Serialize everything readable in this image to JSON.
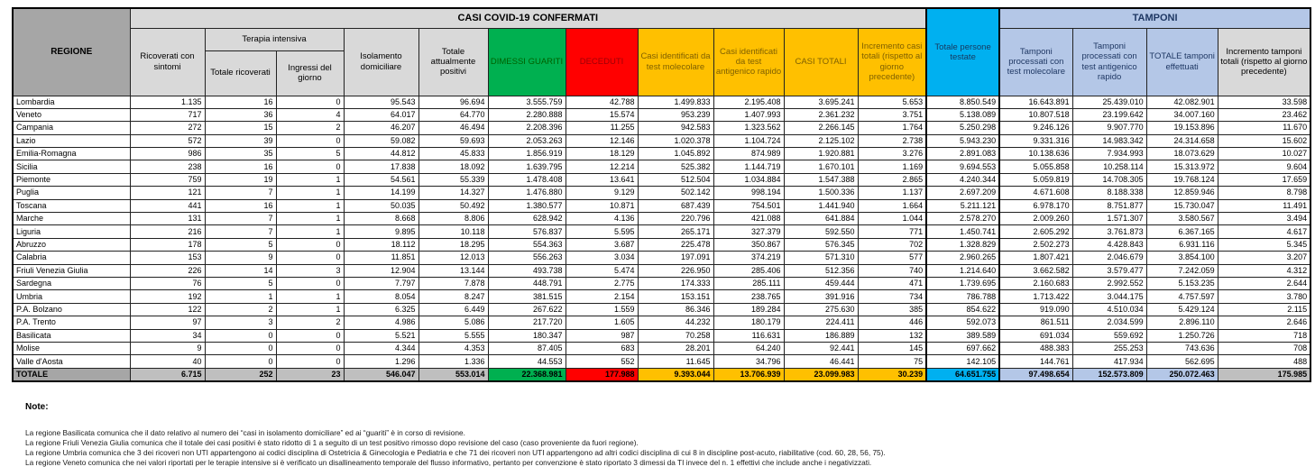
{
  "table": {
    "band_casi": "CASI COVID-19 CONFERMATI",
    "band_tamponi": "TAMPONI",
    "col_regione": "REGIONE",
    "terapia_intensiva": "Terapia intensiva",
    "headers": {
      "ricoverati": "Ricoverati con sintomi",
      "ti_totale": "Totale ricoverati",
      "ti_ingressi": "Ingressi del giorno",
      "isolamento": "Isolamento domiciliare",
      "attualmente_positivi": "Totale attualmente positivi",
      "dimessi": "DIMESSI GUARITI",
      "deceduti": "DECEDUTI",
      "casi_molecolare": "Casi identificati da test molecolare",
      "casi_antigenico": "Casi identificati da test antigenico rapido",
      "casi_totali": "CASI TOTALI",
      "incremento_casi": "Incremento casi totali (rispetto al giorno precedente)",
      "persone_testate": "Totale persone testate",
      "tamponi_molecolare": "Tamponi processati con test molecolare",
      "tamponi_antigenico": "Tamponi processati con test antigenico rapido",
      "tamponi_totale": "TOTALE tamponi effettuati",
      "incremento_tamponi": "Incremento tamponi totali (rispetto al giorno precedente)"
    },
    "rows": [
      [
        "Lombardia",
        "1.135",
        "16",
        "0",
        "95.543",
        "96.694",
        "3.555.759",
        "42.788",
        "1.499.833",
        "2.195.408",
        "3.695.241",
        "5.653",
        "8.850.549",
        "16.643.891",
        "25.439.010",
        "42.082.901",
        "33.598"
      ],
      [
        "Veneto",
        "717",
        "36",
        "4",
        "64.017",
        "64.770",
        "2.280.888",
        "15.574",
        "953.239",
        "1.407.993",
        "2.361.232",
        "3.751",
        "5.138.089",
        "10.807.518",
        "23.199.642",
        "34.007.160",
        "23.462"
      ],
      [
        "Campania",
        "272",
        "15",
        "2",
        "46.207",
        "46.494",
        "2.208.396",
        "11.255",
        "942.583",
        "1.323.562",
        "2.266.145",
        "1.764",
        "5.250.298",
        "9.246.126",
        "9.907.770",
        "19.153.896",
        "11.670"
      ],
      [
        "Lazio",
        "572",
        "39",
        "0",
        "59.082",
        "59.693",
        "2.053.263",
        "12.146",
        "1.020.378",
        "1.104.724",
        "2.125.102",
        "2.738",
        "5.943.230",
        "9.331.316",
        "14.983.342",
        "24.314.658",
        "15.602"
      ],
      [
        "Emilia-Romagna",
        "986",
        "35",
        "5",
        "44.812",
        "45.833",
        "1.856.919",
        "18.129",
        "1.045.892",
        "874.989",
        "1.920.881",
        "3.276",
        "2.891.083",
        "10.138.636",
        "7.934.993",
        "18.073.629",
        "10.027"
      ],
      [
        "Sicilia",
        "238",
        "16",
        "0",
        "17.838",
        "18.092",
        "1.639.795",
        "12.214",
        "525.382",
        "1.144.719",
        "1.670.101",
        "1.169",
        "9.694.553",
        "5.055.858",
        "10.258.114",
        "15.313.972",
        "9.604"
      ],
      [
        "Piemonte",
        "759",
        "19",
        "1",
        "54.561",
        "55.339",
        "1.478.408",
        "13.641",
        "512.504",
        "1.034.884",
        "1.547.388",
        "2.865",
        "4.240.344",
        "5.059.819",
        "14.708.305",
        "19.768.124",
        "17.659"
      ],
      [
        "Puglia",
        "121",
        "7",
        "1",
        "14.199",
        "14.327",
        "1.476.880",
        "9.129",
        "502.142",
        "998.194",
        "1.500.336",
        "1.137",
        "2.697.209",
        "4.671.608",
        "8.188.338",
        "12.859.946",
        "8.798"
      ],
      [
        "Toscana",
        "441",
        "16",
        "1",
        "50.035",
        "50.492",
        "1.380.577",
        "10.871",
        "687.439",
        "754.501",
        "1.441.940",
        "1.664",
        "5.211.121",
        "6.978.170",
        "8.751.877",
        "15.730.047",
        "11.491"
      ],
      [
        "Marche",
        "131",
        "7",
        "1",
        "8.668",
        "8.806",
        "628.942",
        "4.136",
        "220.796",
        "421.088",
        "641.884",
        "1.044",
        "2.578.270",
        "2.009.260",
        "1.571.307",
        "3.580.567",
        "3.494"
      ],
      [
        "Liguria",
        "216",
        "7",
        "1",
        "9.895",
        "10.118",
        "576.837",
        "5.595",
        "265.171",
        "327.379",
        "592.550",
        "771",
        "1.450.741",
        "2.605.292",
        "3.761.873",
        "6.367.165",
        "4.617"
      ],
      [
        "Abruzzo",
        "178",
        "5",
        "0",
        "18.112",
        "18.295",
        "554.363",
        "3.687",
        "225.478",
        "350.867",
        "576.345",
        "702",
        "1.328.829",
        "2.502.273",
        "4.428.843",
        "6.931.116",
        "5.345"
      ],
      [
        "Calabria",
        "153",
        "9",
        "0",
        "11.851",
        "12.013",
        "556.263",
        "3.034",
        "197.091",
        "374.219",
        "571.310",
        "577",
        "2.960.265",
        "1.807.421",
        "2.046.679",
        "3.854.100",
        "3.207"
      ],
      [
        "Friuli Venezia Giulia",
        "226",
        "14",
        "3",
        "12.904",
        "13.144",
        "493.738",
        "5.474",
        "226.950",
        "285.406",
        "512.356",
        "740",
        "1.214.640",
        "3.662.582",
        "3.579.477",
        "7.242.059",
        "4.312"
      ],
      [
        "Sardegna",
        "76",
        "5",
        "0",
        "7.797",
        "7.878",
        "448.791",
        "2.775",
        "174.333",
        "285.111",
        "459.444",
        "471",
        "1.739.695",
        "2.160.683",
        "2.992.552",
        "5.153.235",
        "2.644"
      ],
      [
        "Umbria",
        "192",
        "1",
        "1",
        "8.054",
        "8.247",
        "381.515",
        "2.154",
        "153.151",
        "238.765",
        "391.916",
        "734",
        "786.788",
        "1.713.422",
        "3.044.175",
        "4.757.597",
        "3.780"
      ],
      [
        "P.A. Bolzano",
        "122",
        "2",
        "1",
        "6.325",
        "6.449",
        "267.622",
        "1.559",
        "86.346",
        "189.284",
        "275.630",
        "385",
        "854.622",
        "919.090",
        "4.510.034",
        "5.429.124",
        "2.115"
      ],
      [
        "P.A. Trento",
        "97",
        "3",
        "2",
        "4.986",
        "5.086",
        "217.720",
        "1.605",
        "44.232",
        "180.179",
        "224.411",
        "446",
        "592.073",
        "861.511",
        "2.034.599",
        "2.896.110",
        "2.646"
      ],
      [
        "Basilicata",
        "34",
        "0",
        "0",
        "5.521",
        "5.555",
        "180.347",
        "987",
        "70.258",
        "116.631",
        "186.889",
        "132",
        "389.589",
        "691.034",
        "559.692",
        "1.250.726",
        "718"
      ],
      [
        "Molise",
        "9",
        "0",
        "0",
        "4.344",
        "4.353",
        "87.405",
        "683",
        "28.201",
        "64.240",
        "92.441",
        "145",
        "697.662",
        "488.383",
        "255.253",
        "743.636",
        "708"
      ],
      [
        "Valle d'Aosta",
        "40",
        "0",
        "0",
        "1.296",
        "1.336",
        "44.553",
        "552",
        "11.645",
        "34.796",
        "46.441",
        "75",
        "142.105",
        "144.761",
        "417.934",
        "562.695",
        "488"
      ]
    ],
    "totale": [
      "TOTALE",
      "6.715",
      "252",
      "23",
      "546.047",
      "553.014",
      "22.368.981",
      "177.988",
      "9.393.044",
      "13.706.939",
      "23.099.983",
      "30.239",
      "64.651.755",
      "97.498.654",
      "152.573.809",
      "250.072.463",
      "175.985"
    ]
  },
  "notes": {
    "title": "Note:",
    "lines": [
      "La regione Basilicata comunica che il dato relativo al numero dei “casi in isolamento domiciliare” ed ai “guariti” è in corso di revisione.",
      "La regione Friuli Venezia Giulia comunica che il totale dei casi positivi è stato ridotto di 1 a seguito di un test positivo rimosso dopo revisione del caso (caso proveniente da fuori regione).",
      "La regione Umbria comunica che 3 dei ricoveri non UTI appartengono ai codici disciplina di Ostetricia & Ginecologia e Pediatria e che 71 dei ricoveri non UTI appartengono ad altri codici disciplina di cui 8 in discipline post-acuto, riabilitative (cod. 60, 28, 56, 75).",
      "La regione Veneto comunica che nei valori riportati per le terapie intensive si è verificato un disallineamento temporale del flusso informativo, pertanto per convenzione è stato riportato 3 dimessi da TI  invece del n. 1 effettivi che include anche i negativizzati."
    ]
  },
  "colors": {
    "green": "#00B050",
    "red": "#FF0000",
    "yellow": "#FFC000",
    "cyan": "#00B0F0",
    "light_blue": "#B4C7E7",
    "header_gray": "#A6A6A6",
    "subheader_gray": "#D9D9D9",
    "totale_gray": "#BFBFBF"
  }
}
